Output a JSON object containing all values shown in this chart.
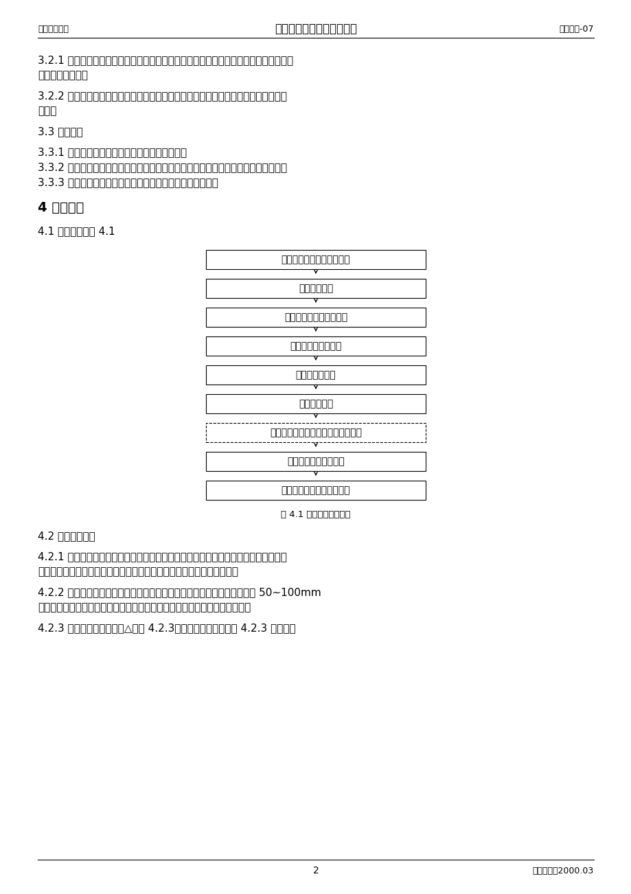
{
  "header_left": "压力管道安装",
  "header_center": "夹套管预制、安装通用工艺",
  "header_right": "工艺管道-07",
  "footer_page": "2",
  "footer_date": "编制日期：2000.03",
  "para1_line1": "3.2.1 施工设备：弯管机、手提式磁力电钻、坡口机、电焊机、氩弧焊机、焊条烘干箱、",
  "para1_line2": "恒温箱、吊车等。",
  "para2_line1": "3.2.2 施工机具：无齿锯、磨光机、氧乙炔切割炬、水平尺弯尺、卷尺等管道施工常用",
  "para2_line2": "工具。",
  "para3": "3.3 作业条件",
  "para3_1": "3.3.1 管线预制区域应设置组对焊接用预制平台。",
  "para3_2": "3.3.2 安装现场的土建、设备已经安装结束，并已办理交接手续，符合管线安装条件。",
  "para3_3": "3.3.3 管子、管件及阀门等已检验合格，符合有关规范要求。",
  "section4_title": "4 施工工艺",
  "section41_text": "4.1 施工程序见图 4.1",
  "flowchart_boxes": [
    {
      "label": "材料、配件阀门检查、复验",
      "dashed": false
    },
    {
      "label": "内、外管下料",
      "dashed": false
    },
    {
      "label": "内管安装定位块、缓冲板",
      "dashed": false
    },
    {
      "label": "在内管上套、装外管",
      "dashed": false
    },
    {
      "label": "内管组对、焊接",
      "dashed": false
    },
    {
      "label": "内管焊接检验",
      "dashed": false
    },
    {
      "label": "内管强度试验与吹扫（焊逢隐蔽式）",
      "dashed": true
    },
    {
      "label": "外管组对、焊接、检验",
      "dashed": false
    },
    {
      "label": "内外管系统强度试验及吹扫",
      "dashed": false
    }
  ],
  "flowchart_caption": "图 4.1 夹套管施工程序图",
  "para42": "4.2 内、外管下料",
  "para421_line1": "4.2.1 内管下料前，应对施工图纸各部分尺寸，技术要求，选用材料配件认真校核，合",
  "para421_line2": "理安排组对程序，制定内、外管分段切割计划，使焊逢减少到最低限度。",
  "para422_line1": "4.2.2 内外管分段制作，以方便运输和安装尺寸调整为原则。预留调整段以 50~100mm",
  "para422_line2": "为宜。对坡度、垫片厚度、支吊架位置、焊逢布局、检测点开孔等综合考虑。",
  "para423": "4.2.3 管子端面垂直度偏差△见图 4.2.3，其偏差值不得大于表 4.2.3 的规定。",
  "background_color": "#ffffff",
  "text_color": "#000000"
}
